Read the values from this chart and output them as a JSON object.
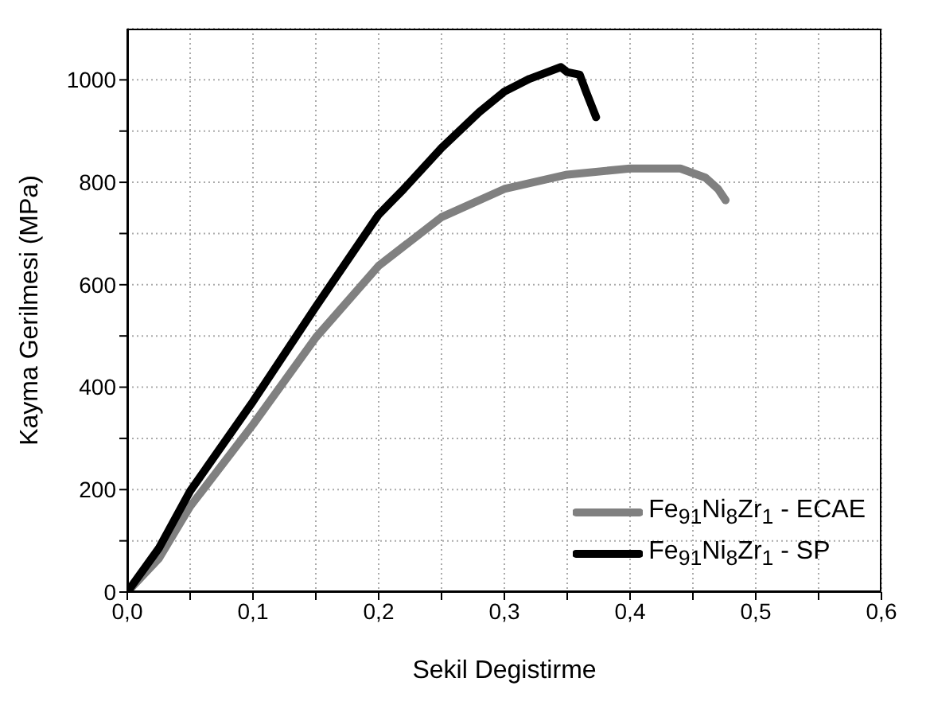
{
  "chart_data": {
    "type": "line",
    "xlabel": "Sekil Degistirme",
    "ylabel": "Kayma Gerilmesi (MPa)",
    "xlim": [
      0,
      0.6
    ],
    "xticks": [
      {
        "value": 0,
        "label": "0,0"
      },
      {
        "value": 0.05,
        "label": null
      },
      {
        "value": 0.1,
        "label": "0,1"
      },
      {
        "value": 0.15,
        "label": null
      },
      {
        "value": 0.2,
        "label": "0,2"
      },
      {
        "value": 0.25,
        "label": null
      },
      {
        "value": 0.3,
        "label": "0,3"
      },
      {
        "value": 0.35,
        "label": null
      },
      {
        "value": 0.4,
        "label": "0,4"
      },
      {
        "value": 0.45,
        "label": null
      },
      {
        "value": 0.5,
        "label": "0,5"
      },
      {
        "value": 0.55,
        "label": null
      },
      {
        "value": 0.6,
        "label": "0,6"
      }
    ],
    "ylim": [
      0,
      1100
    ],
    "yticks": [
      0,
      {
        "value": 100,
        "label": null
      },
      200,
      {
        "value": 300,
        "label": null
      },
      400,
      {
        "value": 500,
        "label": null
      },
      600,
      {
        "value": 700,
        "label": null
      },
      800,
      {
        "value": 900,
        "label": null
      },
      1000
    ],
    "grid": true,
    "legend": "bottom right",
    "marker": "none",
    "line_style": "solid",
    "series": [
      {
        "name": "Fe$_{91}$Ni$_{8}$Zr$_{1}$ - ECAE",
        "color": "#808080",
        "x": [
          0,
          0.025,
          0.05,
          0.1,
          0.15,
          0.2,
          0.25,
          0.3,
          0.35,
          0.4,
          0.44,
          0.46,
          0.47,
          0.476
        ],
        "values": [
          0,
          65,
          167,
          327,
          497,
          637,
          732,
          787,
          815,
          827,
          827,
          809,
          787,
          765
        ]
      },
      {
        "name": "Fe$_{91}$Ni$_{8}$Zr$_{1}$ - SP",
        "color": "#000000",
        "x": [
          0,
          0.025,
          0.05,
          0.1,
          0.15,
          0.2,
          0.22,
          0.25,
          0.28,
          0.3,
          0.32,
          0.345,
          0.35,
          0.36,
          0.365,
          0.373
        ],
        "values": [
          0,
          85,
          197,
          372,
          557,
          737,
          787,
          867,
          937,
          977,
          1002,
          1025,
          1015,
          1010,
          977,
          927
        ]
      }
    ]
  }
}
